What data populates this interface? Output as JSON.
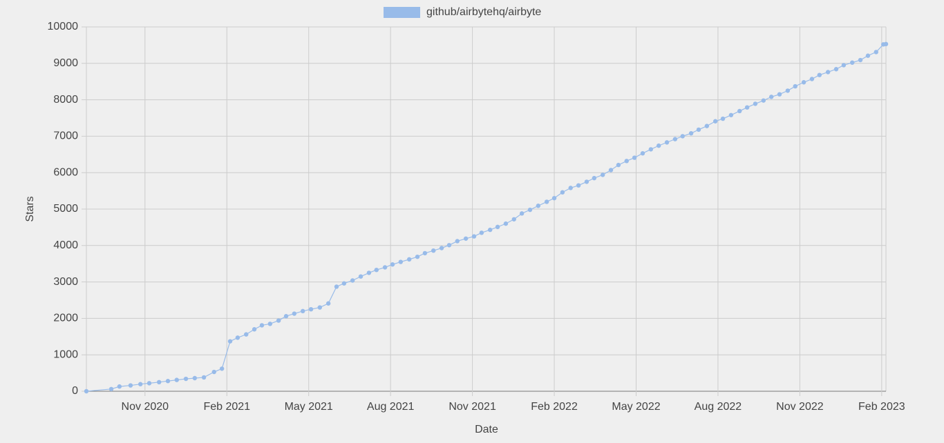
{
  "chart_data": {
    "type": "line",
    "series": [
      {
        "name": "github/airbytehq/airbyte",
        "color": "#98bbe9",
        "values": [
          0,
          60,
          130,
          160,
          195,
          220,
          250,
          280,
          310,
          340,
          360,
          380,
          530,
          620,
          1370,
          1470,
          1560,
          1700,
          1810,
          1850,
          1940,
          2060,
          2130,
          2200,
          2250,
          2300,
          2410,
          2870,
          2960,
          3040,
          3150,
          3250,
          3330,
          3400,
          3480,
          3550,
          3620,
          3690,
          3790,
          3860,
          3930,
          4010,
          4120,
          4190,
          4250,
          4350,
          4430,
          4510,
          4600,
          4720,
          4880,
          4980,
          5090,
          5200,
          5300,
          5460,
          5580,
          5650,
          5750,
          5850,
          5940,
          6070,
          6210,
          6320,
          6410,
          6530,
          6640,
          6740,
          6830,
          6920,
          7000,
          7080,
          7180,
          7280,
          7410,
          7480,
          7580,
          7690,
          7790,
          7890,
          7980,
          8080,
          8150,
          8250,
          8370,
          8480,
          8570,
          8680,
          8760,
          8840,
          8950,
          9020,
          9090,
          9210,
          9310,
          9520,
          9530
        ]
      }
    ],
    "x": [
      2020.654,
      2020.73,
      2020.755,
      2020.789,
      2020.819,
      2020.846,
      2020.876,
      2020.903,
      2020.93,
      2020.958,
      2020.985,
      2021.013,
      2021.044,
      2021.068,
      2021.093,
      2021.116,
      2021.142,
      2021.167,
      2021.19,
      2021.215,
      2021.241,
      2021.264,
      2021.289,
      2021.315,
      2021.34,
      2021.367,
      2021.393,
      2021.418,
      2021.441,
      2021.467,
      2021.492,
      2021.517,
      2021.54,
      2021.566,
      2021.589,
      2021.614,
      2021.64,
      2021.665,
      2021.688,
      2021.714,
      2021.739,
      2021.762,
      2021.787,
      2021.813,
      2021.838,
      2021.861,
      2021.887,
      2021.91,
      2021.935,
      2021.96,
      2021.984,
      2022.009,
      2022.034,
      2022.06,
      2022.083,
      2022.108,
      2022.133,
      2022.157,
      2022.182,
      2022.205,
      2022.231,
      2022.256,
      2022.279,
      2022.304,
      2022.328,
      2022.353,
      2022.378,
      2022.402,
      2022.427,
      2022.452,
      2022.475,
      2022.501,
      2022.524,
      2022.549,
      2022.575,
      2022.598,
      2022.623,
      2022.649,
      2022.672,
      2022.697,
      2022.722,
      2022.746,
      2022.771,
      2022.796,
      2022.819,
      2022.845,
      2022.87,
      2022.893,
      2022.919,
      2022.944,
      2022.967,
      2022.993,
      2023.018,
      2023.041,
      2023.066,
      2023.088,
      2023.096
    ],
    "xlim": [
      2020.654,
      2023.096
    ],
    "xticks": [
      {
        "value": 2020.833,
        "label": "Nov 2020"
      },
      {
        "value": 2021.083,
        "label": "Feb 2021"
      },
      {
        "value": 2021.333,
        "label": "May 2021"
      },
      {
        "value": 2021.583,
        "label": "Aug 2021"
      },
      {
        "value": 2021.833,
        "label": "Nov 2021"
      },
      {
        "value": 2022.083,
        "label": "Feb 2022"
      },
      {
        "value": 2022.333,
        "label": "May 2022"
      },
      {
        "value": 2022.583,
        "label": "Aug 2022"
      },
      {
        "value": 2022.833,
        "label": "Nov 2022"
      },
      {
        "value": 2023.083,
        "label": "Feb 2023"
      }
    ],
    "ylim": [
      0,
      10000
    ],
    "yticks": [
      0,
      1000,
      2000,
      3000,
      4000,
      5000,
      6000,
      7000,
      8000,
      9000,
      10000
    ],
    "x_label": "Date",
    "y_label": "Stars",
    "grid": true,
    "legend": "top"
  }
}
